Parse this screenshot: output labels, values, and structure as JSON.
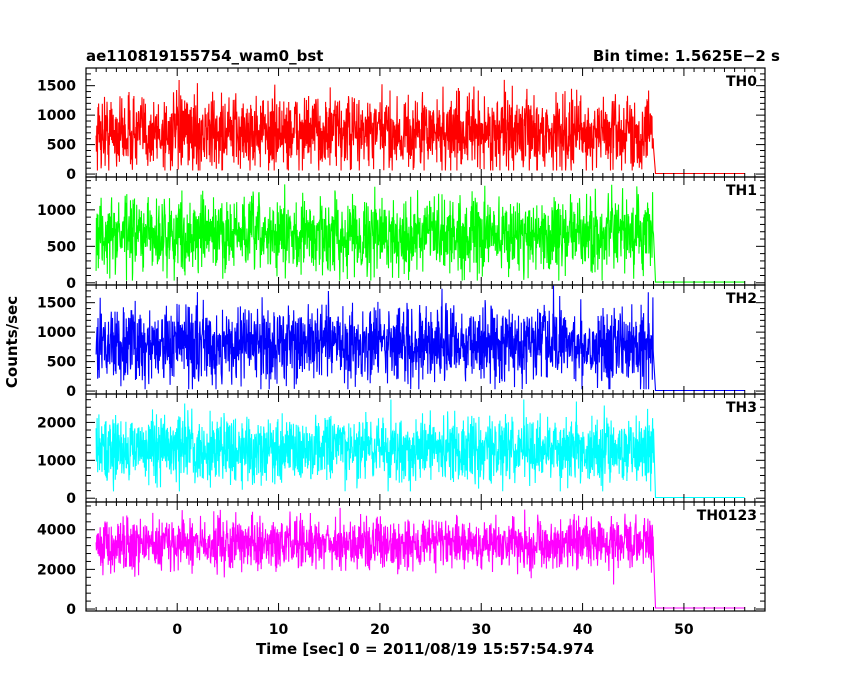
{
  "header": {
    "title": "ae110819155754_wam0_bst",
    "bin_time": "Bin time: 1.5625E−2 s"
  },
  "axes": {
    "ylabel": "Counts/sec",
    "xlabel": "Time [sec] 0 = 2011/08/19 15:57:54.974"
  },
  "chart_data": {
    "type": "line",
    "title": "ae110819155754_wam0_bst",
    "xlabel": "Time [sec] 0 = 2011/08/19 15:57:54.974",
    "ylabel": "Counts/sec",
    "xlim": [
      -9,
      58
    ],
    "x_ticks": [
      0,
      10,
      20,
      30,
      40,
      50
    ],
    "grid": false,
    "note_signal": "noisy light curves; active from about -8 s to 47 s, then drop to near zero until about 56 s",
    "panels": [
      {
        "name": "TH0",
        "color": "#ff0000",
        "ylim": [
          -50,
          1800
        ],
        "yticks": [
          0,
          500,
          1000,
          1500
        ],
        "x": [
          -8,
          47,
          47.2,
          56
        ],
        "mean": [
          700,
          700,
          10,
          10
        ],
        "range": [
          100,
          1800
        ]
      },
      {
        "name": "TH1",
        "color": "#00ff00",
        "ylim": [
          -30,
          1450
        ],
        "yticks": [
          0,
          500,
          1000
        ],
        "x": [
          -8,
          47,
          47.2,
          56
        ],
        "mean": [
          650,
          650,
          10,
          10
        ],
        "range": [
          50,
          1400
        ]
      },
      {
        "name": "TH2",
        "color": "#0000ff",
        "ylim": [
          -50,
          1800
        ],
        "yticks": [
          0,
          500,
          1000,
          1500
        ],
        "x": [
          -8,
          47,
          47.2,
          56
        ],
        "mean": [
          800,
          800,
          10,
          10
        ],
        "range": [
          50,
          1800
        ]
      },
      {
        "name": "TH3",
        "color": "#00ffff",
        "ylim": [
          -100,
          2750
        ],
        "yticks": [
          0,
          1000,
          2000
        ],
        "x": [
          -8,
          47,
          47.2,
          56
        ],
        "mean": [
          1300,
          1300,
          20,
          20
        ],
        "range": [
          300,
          2700
        ]
      },
      {
        "name": "TH0123",
        "color": "#ff00ff",
        "ylim": [
          -100,
          5400
        ],
        "yticks": [
          0,
          2000,
          4000
        ],
        "x": [
          -8,
          47,
          47.2,
          56
        ],
        "mean": [
          3300,
          3300,
          50,
          50
        ],
        "range": [
          1500,
          5000
        ]
      }
    ]
  }
}
